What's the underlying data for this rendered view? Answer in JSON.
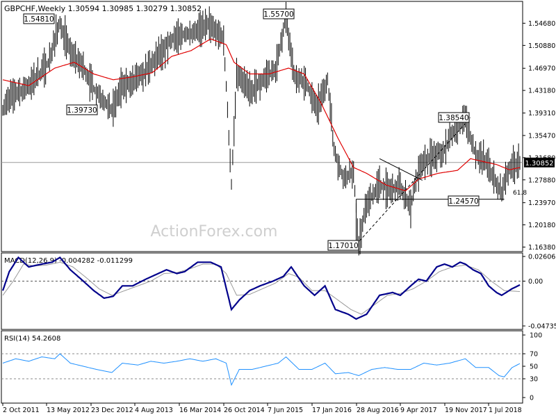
{
  "header": {
    "symbol_line": "GBPCHF,Weekly  1.30594 1.30985 1.30279 1.30852",
    "watermark": "ActionForex.com"
  },
  "chart_data": [
    {
      "type": "line",
      "panel": "price",
      "title": "GBPCHF,Weekly  1.30594 1.30985 1.30279 1.30852",
      "ylim": [
        1.1608,
        1.577
      ],
      "y_ticks": [
        "1.54680",
        "1.50880",
        "1.46970",
        "1.43180",
        "1.39310",
        "1.35470",
        "1.31680",
        "1.27880",
        "1.23970",
        "1.20180",
        "1.16380"
      ],
      "last_price_label": "1.30852",
      "x_dates": [
        "2 Oct 2011",
        "13 May 2012",
        "23 Dec 2012",
        "4 Aug 2013",
        "16 Mar 2014",
        "26 Oct 2014",
        "7 Jun 2015",
        "17 Jan 2016",
        "28 Aug 2016",
        "9 Apr 2017",
        "19 Nov 2017",
        "1 Jul 2018"
      ],
      "price_anchors": [
        [
          0,
          1.4
        ],
        [
          5,
          1.42
        ],
        [
          15,
          1.43
        ],
        [
          25,
          1.45
        ],
        [
          35,
          1.48
        ],
        [
          44,
          1.548
        ],
        [
          52,
          1.5
        ],
        [
          62,
          1.47
        ],
        [
          70,
          1.435
        ],
        [
          75,
          1.42
        ],
        [
          84,
          1.397
        ],
        [
          92,
          1.44
        ],
        [
          100,
          1.445
        ],
        [
          110,
          1.465
        ],
        [
          118,
          1.485
        ],
        [
          126,
          1.51
        ],
        [
          134,
          1.525
        ],
        [
          140,
          1.528
        ],
        [
          150,
          1.535
        ],
        [
          160,
          1.545
        ],
        [
          170,
          1.52
        ],
        [
          176,
          1.27
        ],
        [
          180,
          1.46
        ],
        [
          185,
          1.45
        ],
        [
          192,
          1.43
        ],
        [
          200,
          1.45
        ],
        [
          210,
          1.47
        ],
        [
          218,
          1.557
        ],
        [
          224,
          1.46
        ],
        [
          234,
          1.44
        ],
        [
          242,
          1.4
        ],
        [
          250,
          1.45
        ],
        [
          255,
          1.33
        ],
        [
          262,
          1.28
        ],
        [
          270,
          1.29
        ],
        [
          274,
          1.17
        ],
        [
          280,
          1.24
        ],
        [
          290,
          1.27
        ],
        [
          300,
          1.26
        ],
        [
          306,
          1.27
        ],
        [
          314,
          1.23
        ],
        [
          318,
          1.28
        ],
        [
          324,
          1.31
        ],
        [
          332,
          1.32
        ],
        [
          340,
          1.33
        ],
        [
          346,
          1.36
        ],
        [
          356,
          1.3854
        ],
        [
          364,
          1.32
        ],
        [
          372,
          1.31
        ],
        [
          380,
          1.27
        ],
        [
          384,
          1.257
        ],
        [
          390,
          1.3
        ],
        [
          398,
          1.3085
        ]
      ],
      "ma_anchors": [
        [
          0,
          1.45
        ],
        [
          20,
          1.44
        ],
        [
          40,
          1.47
        ],
        [
          55,
          1.48
        ],
        [
          70,
          1.46
        ],
        [
          85,
          1.45
        ],
        [
          100,
          1.455
        ],
        [
          115,
          1.462
        ],
        [
          130,
          1.49
        ],
        [
          145,
          1.5
        ],
        [
          160,
          1.52
        ],
        [
          172,
          1.51
        ],
        [
          178,
          1.48
        ],
        [
          190,
          1.46
        ],
        [
          205,
          1.46
        ],
        [
          220,
          1.47
        ],
        [
          232,
          1.46
        ],
        [
          245,
          1.41
        ],
        [
          258,
          1.35
        ],
        [
          270,
          1.3
        ],
        [
          280,
          1.29
        ],
        [
          295,
          1.27
        ],
        [
          310,
          1.26
        ],
        [
          320,
          1.28
        ],
        [
          335,
          1.29
        ],
        [
          350,
          1.295
        ],
        [
          360,
          1.315
        ],
        [
          370,
          1.31
        ],
        [
          380,
          1.305
        ],
        [
          390,
          1.296
        ],
        [
          398,
          1.3
        ]
      ],
      "annotations": [
        {
          "label": "1.54810",
          "value": 1.5481
        },
        {
          "label": "1.55700",
          "value": 1.557
        },
        {
          "label": "1.39730",
          "value": 1.3973
        },
        {
          "label": "1.38540",
          "value": 1.3854
        },
        {
          "label": "1.24570",
          "value": 1.2457
        },
        {
          "label": "1.17010",
          "value": 1.1701
        },
        {
          "label": "61.8",
          "value": 1.2457
        }
      ]
    },
    {
      "type": "line",
      "panel": "macd",
      "title": "MACD(12,26,9) -0.004282 -0.011299",
      "ylim": [
        -0.04735,
        0.02606
      ],
      "y_ticks": [
        "0.026065",
        "0.00",
        "-0.047354"
      ],
      "series": [
        {
          "values": [
            [
              0,
              -0.01
            ],
            [
              5,
              0.01
            ],
            [
              12,
              0.025
            ],
            [
              20,
              0.015
            ],
            [
              30,
              0.018
            ],
            [
              38,
              0.02
            ],
            [
              44,
              0.025
            ],
            [
              52,
              0.012
            ],
            [
              62,
              0.0
            ],
            [
              70,
              -0.01
            ],
            [
              78,
              -0.018
            ],
            [
              85,
              -0.016
            ],
            [
              92,
              -0.005
            ],
            [
              100,
              -0.005
            ],
            [
              110,
              0.002
            ],
            [
              118,
              0.007
            ],
            [
              126,
              0.012
            ],
            [
              134,
              0.008
            ],
            [
              140,
              0.01
            ],
            [
              150,
              0.02
            ],
            [
              160,
              0.02
            ],
            [
              168,
              0.015
            ],
            [
              176,
              -0.03
            ],
            [
              182,
              -0.02
            ],
            [
              190,
              -0.01
            ],
            [
              198,
              -0.005
            ],
            [
              208,
              0.0
            ],
            [
              216,
              0.005
            ],
            [
              222,
              0.015
            ],
            [
              232,
              -0.005
            ],
            [
              240,
              -0.015
            ],
            [
              248,
              -0.005
            ],
            [
              256,
              -0.03
            ],
            [
              266,
              -0.035
            ],
            [
              272,
              -0.04
            ],
            [
              280,
              -0.035
            ],
            [
              290,
              -0.015
            ],
            [
              300,
              -0.012
            ],
            [
              306,
              -0.015
            ],
            [
              314,
              -0.005
            ],
            [
              320,
              0.002
            ],
            [
              326,
              0.0
            ],
            [
              334,
              0.015
            ],
            [
              340,
              0.018
            ],
            [
              346,
              0.015
            ],
            [
              352,
              0.02
            ],
            [
              356,
              0.018
            ],
            [
              362,
              0.012
            ],
            [
              368,
              0.008
            ],
            [
              374,
              -0.005
            ],
            [
              380,
              -0.012
            ],
            [
              384,
              -0.015
            ],
            [
              392,
              -0.008
            ],
            [
              398,
              -0.004
            ]
          ]
        },
        {
          "values": [
            [
              0,
              -0.015
            ],
            [
              8,
              0.0
            ],
            [
              16,
              0.018
            ],
            [
              24,
              0.016
            ],
            [
              34,
              0.017
            ],
            [
              44,
              0.02
            ],
            [
              54,
              0.015
            ],
            [
              64,
              0.004
            ],
            [
              74,
              -0.008
            ],
            [
              84,
              -0.015
            ],
            [
              94,
              -0.01
            ],
            [
              104,
              -0.005
            ],
            [
              114,
              0.0
            ],
            [
              124,
              0.008
            ],
            [
              134,
              0.009
            ],
            [
              144,
              0.013
            ],
            [
              154,
              0.018
            ],
            [
              164,
              0.018
            ],
            [
              172,
              0.008
            ],
            [
              180,
              -0.015
            ],
            [
              190,
              -0.014
            ],
            [
              200,
              -0.008
            ],
            [
              210,
              -0.002
            ],
            [
              220,
              0.008
            ],
            [
              228,
              0.004
            ],
            [
              238,
              -0.01
            ],
            [
              248,
              -0.01
            ],
            [
              258,
              -0.02
            ],
            [
              268,
              -0.03
            ],
            [
              276,
              -0.035
            ],
            [
              286,
              -0.025
            ],
            [
              296,
              -0.015
            ],
            [
              306,
              -0.013
            ],
            [
              316,
              -0.008
            ],
            [
              326,
              0.0
            ],
            [
              336,
              0.01
            ],
            [
              346,
              0.015
            ],
            [
              356,
              0.017
            ],
            [
              366,
              0.012
            ],
            [
              376,
              0.0
            ],
            [
              386,
              -0.01
            ],
            [
              398,
              -0.011
            ]
          ]
        }
      ]
    },
    {
      "type": "line",
      "panel": "rsi",
      "title": "RSI(14) 54.2608",
      "ylim": [
        0,
        100
      ],
      "y_ticks": [
        "100",
        "70",
        "50",
        "30",
        "0"
      ],
      "series": [
        {
          "values": [
            [
              0,
              55
            ],
            [
              10,
              62
            ],
            [
              20,
              58
            ],
            [
              30,
              65
            ],
            [
              40,
              62
            ],
            [
              44,
              70
            ],
            [
              52,
              55
            ],
            [
              62,
              50
            ],
            [
              72,
              45
            ],
            [
              84,
              40
            ],
            [
              92,
              55
            ],
            [
              104,
              52
            ],
            [
              114,
              58
            ],
            [
              124,
              55
            ],
            [
              134,
              58
            ],
            [
              144,
              62
            ],
            [
              154,
              58
            ],
            [
              164,
              62
            ],
            [
              172,
              55
            ],
            [
              176,
              20
            ],
            [
              182,
              45
            ],
            [
              192,
              45
            ],
            [
              202,
              50
            ],
            [
              212,
              55
            ],
            [
              218,
              65
            ],
            [
              228,
              45
            ],
            [
              238,
              45
            ],
            [
              248,
              55
            ],
            [
              256,
              38
            ],
            [
              266,
              40
            ],
            [
              274,
              35
            ],
            [
              284,
              45
            ],
            [
              294,
              48
            ],
            [
              304,
              45
            ],
            [
              314,
              45
            ],
            [
              324,
              55
            ],
            [
              334,
              52
            ],
            [
              344,
              55
            ],
            [
              356,
              62
            ],
            [
              364,
              48
            ],
            [
              374,
              48
            ],
            [
              382,
              35
            ],
            [
              386,
              33
            ],
            [
              392,
              48
            ],
            [
              398,
              54.26
            ]
          ]
        }
      ]
    }
  ]
}
